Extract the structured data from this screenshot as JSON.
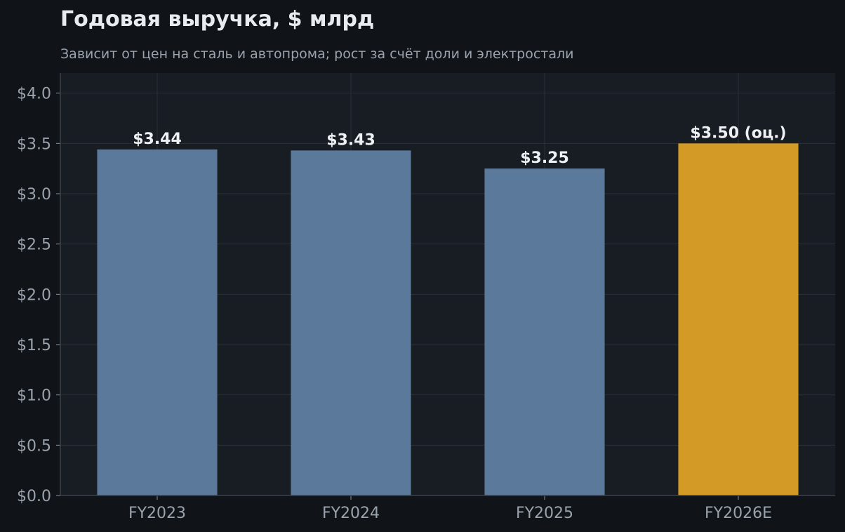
{
  "chart_data": {
    "type": "bar",
    "title": "Годовая выручка, $ млрд",
    "subtitle": "Зависит от цен на сталь и автопрома; рост за счёт доли и электростали",
    "categories": [
      "FY2023",
      "FY2024",
      "FY2025",
      "FY2026E"
    ],
    "values": [
      3.44,
      3.43,
      3.25,
      3.5
    ],
    "value_labels": [
      "$3.44",
      "$3.43",
      "$3.25",
      "$3.50 (оц.)"
    ],
    "estimate_flags": [
      false,
      false,
      false,
      true
    ],
    "xlabel": "",
    "ylabel": "",
    "ylim": [
      0,
      4.2
    ],
    "yticks": [
      0,
      0.5,
      1.0,
      1.5,
      2.0,
      2.5,
      3.0,
      3.5,
      4.0
    ],
    "ytick_labels": [
      "$0.0",
      "$0.5",
      "$1.0",
      "$1.5",
      "$2.0",
      "$2.5",
      "$3.0",
      "$3.5",
      "$4.0"
    ],
    "grid": true,
    "colors": {
      "actual": "#5b7a9b",
      "estimate": "#d39a26",
      "plot_background": "#181c23",
      "page_background": "#101418"
    }
  }
}
